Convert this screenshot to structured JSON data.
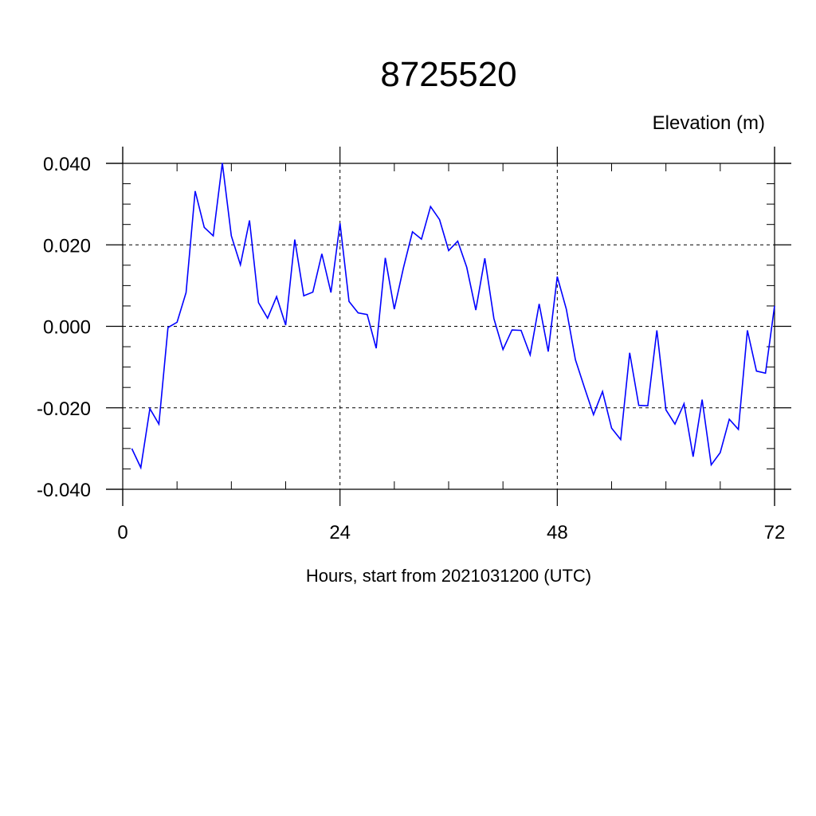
{
  "chart_data": {
    "type": "line",
    "title": "8725520",
    "units_label": "Elevation (m)",
    "xlabel": "Hours, start from 2021031200 (UTC)",
    "ylabel": "",
    "xlim": [
      0,
      72
    ],
    "ylim": [
      -0.04,
      0.04
    ],
    "x_ticks": [
      0,
      24,
      48,
      72
    ],
    "x_tick_labels": [
      "0",
      "24",
      "48",
      "72"
    ],
    "y_ticks": [
      -0.04,
      -0.02,
      0.0,
      0.02,
      0.04
    ],
    "y_tick_labels": [
      "-0.040",
      "-0.020",
      "0.000",
      "0.020",
      "0.040"
    ],
    "grid": true,
    "line_color": "#0000ff",
    "series": [
      {
        "x": [
          1,
          2,
          3,
          4,
          5,
          6,
          7,
          8,
          9,
          10,
          11,
          12,
          13,
          14,
          15,
          16,
          17,
          18,
          19,
          20,
          21,
          22,
          23,
          24,
          25,
          26,
          27,
          28,
          29,
          30,
          31,
          32,
          33,
          34,
          35,
          36,
          37,
          38,
          39,
          40,
          41,
          42,
          43,
          44,
          45,
          46,
          47,
          48,
          49,
          50,
          51,
          52,
          53,
          54,
          55,
          56,
          57,
          58,
          59,
          60,
          61,
          62,
          63,
          64,
          65,
          66,
          67,
          68,
          69,
          70,
          71,
          72
        ],
        "values": [
          -0.03,
          -0.0347,
          -0.0202,
          -0.024,
          -0.0003,
          0.001,
          0.0083,
          0.0332,
          0.0243,
          0.0222,
          0.0401,
          0.0222,
          0.0151,
          0.026,
          0.0058,
          0.002,
          0.0073,
          0.0003,
          0.0213,
          0.0075,
          0.0084,
          0.0178,
          0.0083,
          0.0253,
          0.0061,
          0.0033,
          0.0029,
          -0.0054,
          0.0168,
          0.0042,
          0.0143,
          0.0232,
          0.0214,
          0.0294,
          0.0262,
          0.0186,
          0.0209,
          0.0145,
          0.004,
          0.0167,
          0.0019,
          -0.0057,
          -0.0009,
          -0.001,
          -0.007,
          0.0055,
          -0.0062,
          0.0122,
          0.0042,
          -0.0082,
          -0.015,
          -0.0217,
          -0.016,
          -0.025,
          -0.0278,
          -0.0065,
          -0.0194,
          -0.0195,
          -0.001,
          -0.0205,
          -0.024,
          -0.019,
          -0.032,
          -0.018,
          -0.034,
          -0.031,
          -0.0228,
          -0.0253,
          -0.001,
          -0.011,
          -0.0115,
          0.005
        ]
      }
    ]
  }
}
